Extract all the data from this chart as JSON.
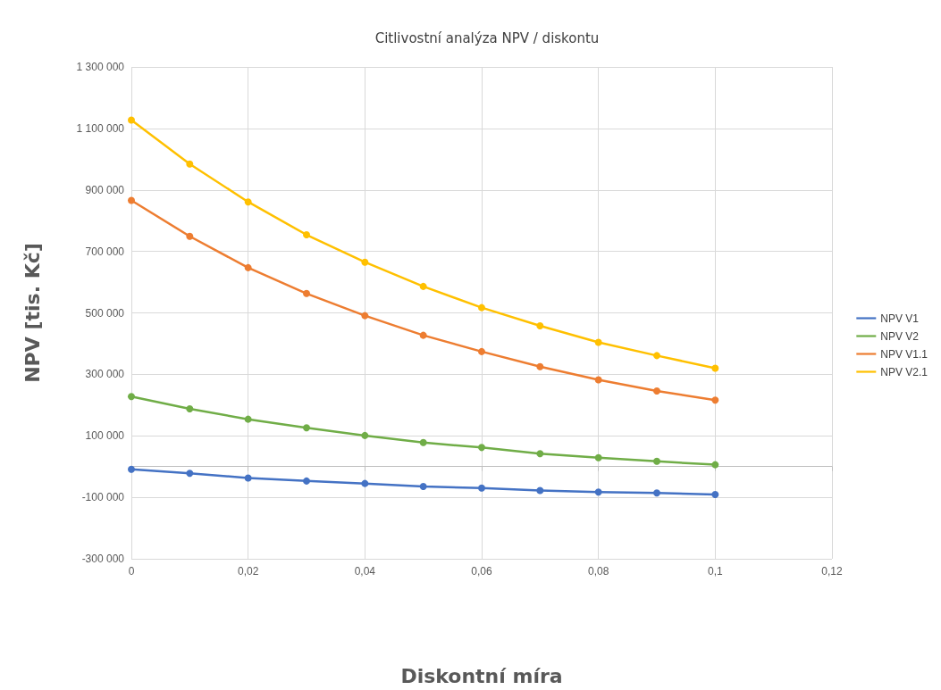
{
  "chart_data": {
    "type": "line",
    "title": "Citlivostní analýza NPV / diskontu",
    "xlabel": "Diskontní míra",
    "ylabel": "NPV [tis. Kč]",
    "x": [
      0,
      0.01,
      0.02,
      0.03,
      0.04,
      0.05,
      0.06,
      0.07,
      0.08,
      0.09,
      0.1
    ],
    "series": [
      {
        "name": "NPV V1",
        "color": "#4472c4",
        "values": [
          -9000,
          -22000,
          -37000,
          -47000,
          -55000,
          -65000,
          -70000,
          -78000,
          -83000,
          -86000,
          -91000
        ]
      },
      {
        "name": "NPV V2",
        "color": "#70ad47",
        "values": [
          228000,
          188000,
          154000,
          126000,
          101000,
          78000,
          62000,
          42000,
          29000,
          17000,
          6000
        ]
      },
      {
        "name": "NPV V1.1",
        "color": "#ed7d31",
        "values": [
          866000,
          749000,
          647000,
          563000,
          491000,
          427000,
          374000,
          325000,
          282000,
          246000,
          216000
        ]
      },
      {
        "name": "NPV V2.1",
        "color": "#ffc000",
        "values": [
          1127000,
          984000,
          861000,
          754000,
          665000,
          586000,
          517000,
          458000,
          404000,
          361000,
          320000
        ]
      }
    ],
    "xlim": [
      0,
      0.12
    ],
    "xticks": [
      0,
      {
        "value": 0.02,
        "label": "0,02"
      },
      {
        "value": 0.04,
        "label": "0,04"
      },
      {
        "value": 0.06,
        "label": "0,06"
      },
      {
        "value": 0.08,
        "label": "0,08"
      },
      {
        "value": 0.1,
        "label": "0,1"
      },
      {
        "value": 0.12,
        "label": "0,12"
      }
    ],
    "ylim": [
      -300000,
      1300000
    ],
    "yticks": [
      {
        "value": -300000,
        "label": "-300 000"
      },
      {
        "value": -100000,
        "label": "-100 000"
      },
      {
        "value": 100000,
        "label": "100 000"
      },
      {
        "value": 300000,
        "label": "300 000"
      },
      {
        "value": 500000,
        "label": "500 000"
      },
      {
        "value": 700000,
        "label": "700 000"
      },
      {
        "value": 900000,
        "label": "900 000"
      },
      {
        "value": 1100000,
        "label": "1 100 000"
      },
      {
        "value": 1300000,
        "label": "1 300 000"
      }
    ],
    "grid": true,
    "legend": "right",
    "marker": "circle",
    "line_style": "solid"
  }
}
